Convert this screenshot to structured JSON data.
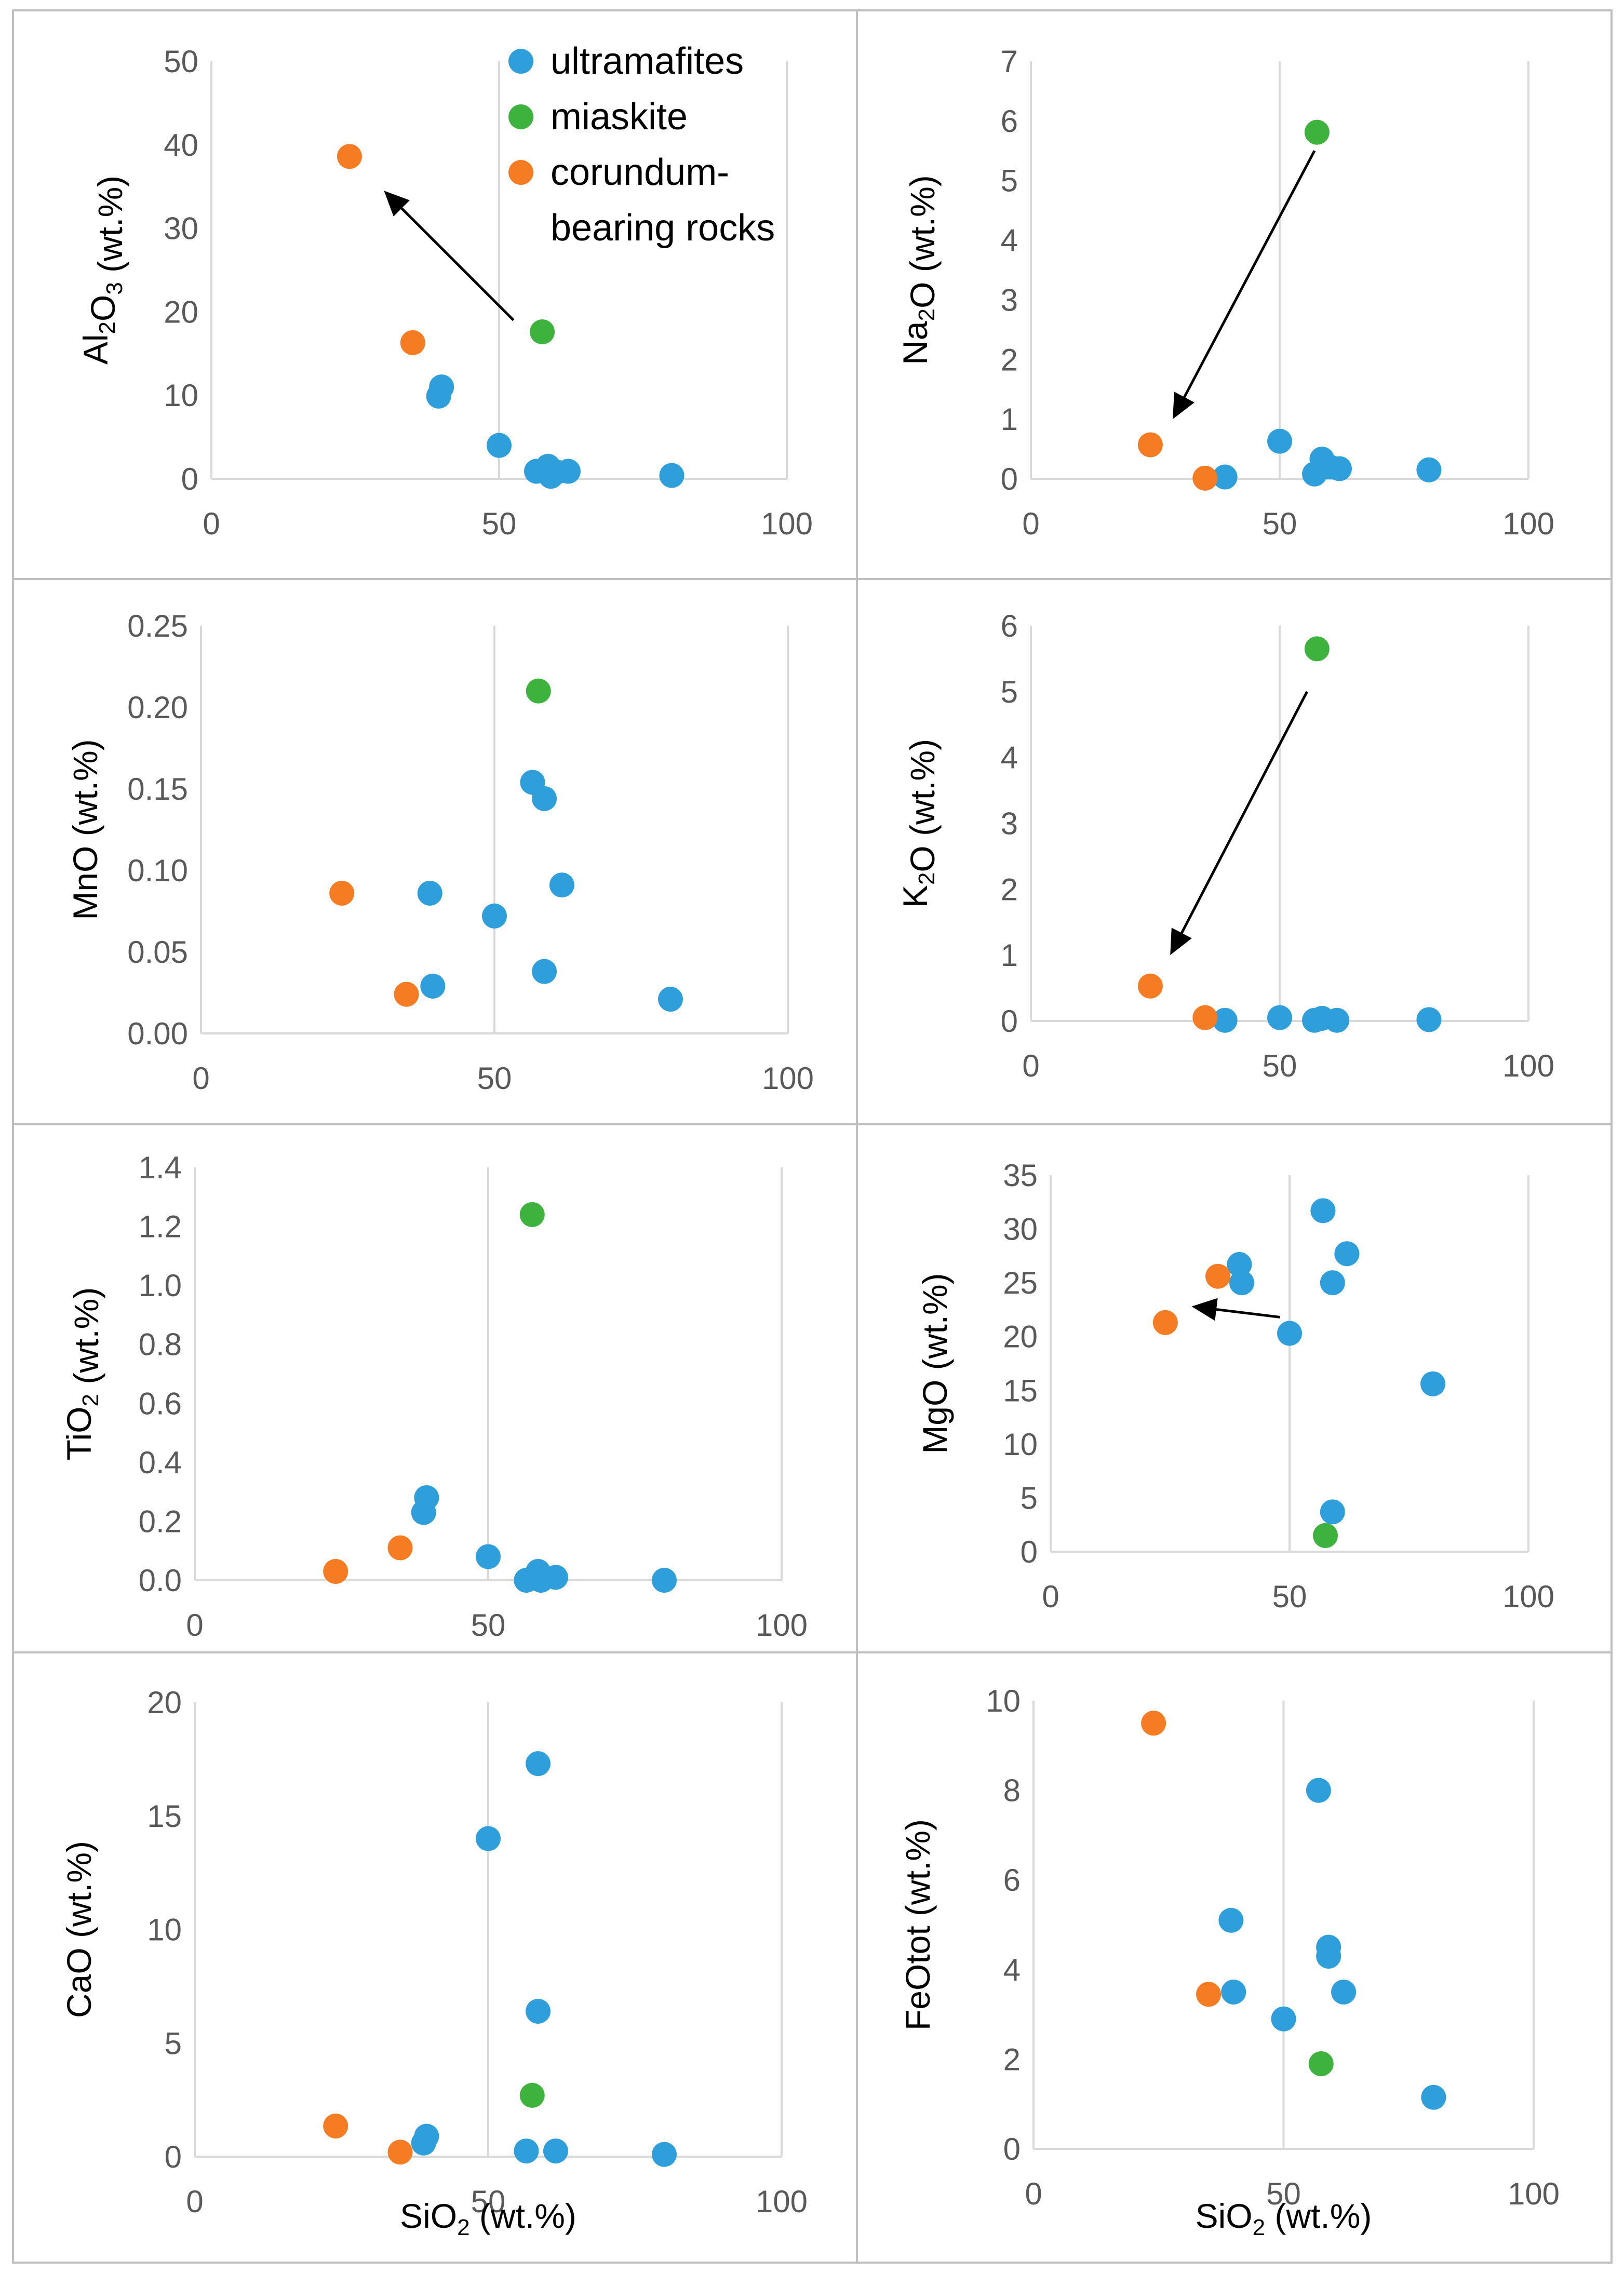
{
  "legend": [
    {
      "name": "ultramafites",
      "color": "#2E9FDB"
    },
    {
      "name": "miaskite",
      "color": "#3DB33D"
    },
    {
      "name": "corundum-bearing rocks",
      "line1": "corundum-",
      "line2": "bearing rocks",
      "color": "#F57C22"
    }
  ],
  "chart_data": [
    {
      "type": "scatter",
      "id": "al2o3",
      "ylabel_main": "Al",
      "ylabel_sub1": "2",
      "ylabel_mid": "O",
      "ylabel_sub2": "3",
      "ylabel_tail": " (wt.%)",
      "xlabel": "",
      "xlim": [
        0,
        100
      ],
      "ylim": [
        0,
        50
      ],
      "xticks": [
        "0",
        "50",
        "100"
      ],
      "yticks": [
        "0",
        "10",
        "20",
        "30",
        "40",
        "50"
      ],
      "series": [
        {
          "name": "ultramafites",
          "points": [
            [
              39.5,
              9.9
            ],
            [
              40,
              11
            ],
            [
              50,
              4
            ],
            [
              56.5,
              0.9
            ],
            [
              58.5,
              1.5
            ],
            [
              59,
              0.3
            ],
            [
              60,
              0.8
            ],
            [
              62,
              0.9
            ],
            [
              80,
              0.4
            ]
          ]
        },
        {
          "name": "miaskite",
          "points": [
            [
              57.5,
              17.6
            ]
          ]
        },
        {
          "name": "corundum-bearing rocks",
          "points": [
            [
              24,
              38.6
            ],
            [
              35,
              16.3
            ]
          ]
        }
      ],
      "arrows": [
        [
          52.5,
          19.0,
          30.0,
          34.5
        ]
      ]
    },
    {
      "type": "scatter",
      "id": "na2o",
      "ylabel_main": "Na",
      "ylabel_sub1": "2",
      "ylabel_mid": "O",
      "ylabel_sub2": "",
      "ylabel_tail": " (wt.%)",
      "xlabel": "",
      "xlim": [
        0,
        100
      ],
      "ylim": [
        0,
        7
      ],
      "xticks": [
        "0",
        "50",
        "100"
      ],
      "yticks": [
        "0",
        "1",
        "2",
        "3",
        "4",
        "5",
        "6",
        "7"
      ],
      "series": [
        {
          "name": "ultramafites",
          "points": [
            [
              39,
              0.03
            ],
            [
              50,
              0.63
            ],
            [
              57,
              0.08
            ],
            [
              58.5,
              0.33
            ],
            [
              60,
              0.2
            ],
            [
              62,
              0.17
            ],
            [
              80,
              0.15
            ]
          ]
        },
        {
          "name": "miaskite",
          "points": [
            [
              57.5,
              5.81
            ]
          ]
        },
        {
          "name": "corundum-bearing rocks",
          "points": [
            [
              24,
              0.57
            ],
            [
              35,
              0.01
            ]
          ]
        }
      ],
      "arrows": [
        [
          57.0,
          5.5,
          28.5,
          1.0
        ]
      ]
    },
    {
      "type": "scatter",
      "id": "mno",
      "ylabel_main": "MnO (wt.%)",
      "ylabel_sub1": "",
      "ylabel_mid": "",
      "ylabel_sub2": "",
      "ylabel_tail": "",
      "xlabel": "",
      "xlim": [
        0,
        100
      ],
      "ylim": [
        0,
        0.25
      ],
      "xticks": [
        "0",
        "50",
        "100"
      ],
      "yticks": [
        "0.00",
        "0.05",
        "0.10",
        "0.15",
        "0.20",
        "0.25"
      ],
      "series": [
        {
          "name": "ultramafites",
          "points": [
            [
              39,
              0.086
            ],
            [
              39.5,
              0.029
            ],
            [
              50,
              0.072
            ],
            [
              56.5,
              0.154
            ],
            [
              58.5,
              0.144
            ],
            [
              58.5,
              0.038
            ],
            [
              61.5,
              0.091
            ],
            [
              80,
              0.021
            ]
          ]
        },
        {
          "name": "miaskite",
          "points": [
            [
              57.5,
              0.21
            ]
          ]
        },
        {
          "name": "corundum-bearing rocks",
          "points": [
            [
              24,
              0.086
            ],
            [
              35,
              0.024
            ]
          ]
        }
      ],
      "arrows": []
    },
    {
      "type": "scatter",
      "id": "k2o",
      "ylabel_main": "K",
      "ylabel_sub1": "2",
      "ylabel_mid": "O",
      "ylabel_sub2": "",
      "ylabel_tail": " (wt.%)",
      "xlabel": "",
      "xlim": [
        0,
        100
      ],
      "ylim": [
        0,
        6
      ],
      "xticks": [
        "0",
        "50",
        "100"
      ],
      "yticks": [
        "0",
        "1",
        "2",
        "3",
        "4",
        "5",
        "6"
      ],
      "series": [
        {
          "name": "ultramafites",
          "points": [
            [
              39,
              0.01
            ],
            [
              50,
              0.05
            ],
            [
              57,
              0.01
            ],
            [
              58.5,
              0.04
            ],
            [
              61.5,
              0.01
            ],
            [
              80,
              0.02
            ]
          ]
        },
        {
          "name": "miaskite",
          "points": [
            [
              57.5,
              5.65
            ]
          ]
        },
        {
          "name": "corundum-bearing rocks",
          "points": [
            [
              24,
              0.53
            ],
            [
              35,
              0.05
            ]
          ]
        }
      ],
      "arrows": [
        [
          55.5,
          5.0,
          28.0,
          1.0
        ]
      ]
    },
    {
      "type": "scatter",
      "id": "tio2",
      "ylabel_main": "TiO",
      "ylabel_sub1": "",
      "ylabel_mid": "",
      "ylabel_sub2": "2",
      "ylabel_tail": " (wt.%)",
      "xlabel": "",
      "xlim": [
        0,
        100
      ],
      "ylim": [
        0,
        1.4
      ],
      "xticks": [
        "0",
        "50",
        "100"
      ],
      "yticks": [
        "0.0",
        "0.2",
        "0.4",
        "0.6",
        "0.8",
        "1.0",
        "1.2",
        "1.4"
      ],
      "series": [
        {
          "name": "ultramafites",
          "points": [
            [
              39,
              0.23
            ],
            [
              39.5,
              0.28
            ],
            [
              50,
              0.08
            ],
            [
              56.5,
              0.0
            ],
            [
              58.5,
              0.03
            ],
            [
              59,
              0.0
            ],
            [
              61.5,
              0.01
            ],
            [
              80,
              0.0
            ]
          ]
        },
        {
          "name": "miaskite",
          "points": [
            [
              57.5,
              1.24
            ]
          ]
        },
        {
          "name": "corundum-bearing rocks",
          "points": [
            [
              24,
              0.03
            ],
            [
              35,
              0.11
            ]
          ]
        }
      ],
      "arrows": []
    },
    {
      "type": "scatter",
      "id": "mgo",
      "ylabel_main": "MgO (wt.%)",
      "ylabel_sub1": "",
      "ylabel_mid": "",
      "ylabel_sub2": "",
      "ylabel_tail": "",
      "xlabel": "",
      "xlim": [
        0,
        100
      ],
      "ylim": [
        0,
        35
      ],
      "xticks": [
        "0",
        "50",
        "100"
      ],
      "yticks": [
        "0",
        "5",
        "10",
        "15",
        "20",
        "25",
        "30",
        "35"
      ],
      "series": [
        {
          "name": "ultramafites",
          "points": [
            [
              39.5,
              26.7
            ],
            [
              40,
              25.0
            ],
            [
              50,
              20.3
            ],
            [
              57,
              31.7
            ],
            [
              59,
              25.0
            ],
            [
              59,
              3.7
            ],
            [
              62,
              27.7
            ],
            [
              80,
              15.6
            ]
          ]
        },
        {
          "name": "miaskite",
          "points": [
            [
              57.5,
              1.5
            ]
          ]
        },
        {
          "name": "corundum-bearing rocks",
          "points": [
            [
              24,
              21.3
            ],
            [
              35,
              25.6
            ]
          ]
        }
      ],
      "arrows": [
        [
          48.0,
          21.8,
          29.5,
          22.8
        ]
      ]
    },
    {
      "type": "scatter",
      "id": "cao",
      "ylabel_main": "CaO (wt.%)",
      "ylabel_sub1": "",
      "ylabel_mid": "",
      "ylabel_sub2": "",
      "ylabel_tail": "",
      "xlabel_main": "SiO",
      "xlabel_sub": "2",
      "xlabel_tail": " (wt.%)",
      "xlim": [
        0,
        100
      ],
      "ylim": [
        0,
        20
      ],
      "xticks": [
        "0",
        "50",
        "100"
      ],
      "yticks": [
        "0",
        "5",
        "10",
        "15",
        "20"
      ],
      "series": [
        {
          "name": "ultramafites",
          "points": [
            [
              39,
              0.6
            ],
            [
              39.5,
              0.9
            ],
            [
              50,
              14.0
            ],
            [
              56.5,
              0.25
            ],
            [
              58.5,
              17.3
            ],
            [
              58.5,
              6.4
            ],
            [
              61.5,
              0.25
            ],
            [
              80,
              0.1
            ]
          ]
        },
        {
          "name": "miaskite",
          "points": [
            [
              57.5,
              2.7
            ]
          ]
        },
        {
          "name": "corundum-bearing rocks",
          "points": [
            [
              24,
              1.35
            ],
            [
              35,
              0.2
            ]
          ]
        }
      ],
      "arrows": []
    },
    {
      "type": "scatter",
      "id": "feotot",
      "ylabel_main": "FeOtot (wt.%)",
      "ylabel_sub1": "",
      "ylabel_mid": "",
      "ylabel_sub2": "",
      "ylabel_tail": "",
      "xlabel_main": "SiO",
      "xlabel_sub": "2",
      "xlabel_tail": " (wt.%)",
      "xlim": [
        0,
        100
      ],
      "ylim": [
        0,
        10
      ],
      "xticks": [
        "0",
        "50",
        "100"
      ],
      "yticks": [
        "0",
        "2",
        "4",
        "6",
        "8",
        "10"
      ],
      "series": [
        {
          "name": "ultramafites",
          "points": [
            [
              39.5,
              5.1
            ],
            [
              40,
              3.5
            ],
            [
              50,
              2.9
            ],
            [
              57,
              8.0
            ],
            [
              59,
              4.5
            ],
            [
              59,
              4.3
            ],
            [
              62,
              3.5
            ],
            [
              80,
              1.15
            ]
          ]
        },
        {
          "name": "miaskite",
          "points": [
            [
              57.5,
              1.9
            ]
          ]
        },
        {
          "name": "corundum-bearing rocks",
          "points": [
            [
              24,
              9.5
            ],
            [
              35,
              3.45
            ]
          ]
        }
      ],
      "arrows": []
    }
  ]
}
